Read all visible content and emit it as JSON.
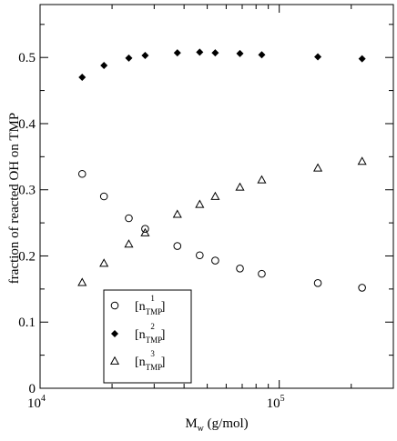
{
  "chart_data": {
    "type": "scatter",
    "title": "",
    "xlabel": {
      "main": "M",
      "sub": "w",
      "tail": " (g/mol)"
    },
    "ylabel": "fraction of reacted OH on TMP",
    "x_scale": "log",
    "xlim": [
      10000,
      300000
    ],
    "ylim": [
      0,
      0.58
    ],
    "grid": false,
    "legend_position": "bottom-left",
    "x_ticks": [
      {
        "value": 10000,
        "base": "10",
        "exp": "4"
      },
      {
        "value": 100000,
        "base": "10",
        "exp": "5"
      }
    ],
    "y_ticks": [
      {
        "value": 0,
        "label": "0"
      },
      {
        "value": 0.1,
        "label": "0.1"
      },
      {
        "value": 0.2,
        "label": "0.2"
      },
      {
        "value": 0.3,
        "label": "0.3"
      },
      {
        "value": 0.4,
        "label": "0.4"
      },
      {
        "value": 0.5,
        "label": "0.5"
      }
    ],
    "series": [
      {
        "name": {
          "open": "[n",
          "sub": "TMP",
          "sup": "1",
          "close": "]"
        },
        "marker": "circle-open",
        "x": [
          15000,
          18500,
          23500,
          27500,
          37500,
          46500,
          54000,
          68500,
          84500,
          145000,
          222000
        ],
        "y": [
          0.324,
          0.29,
          0.257,
          0.241,
          0.215,
          0.201,
          0.193,
          0.181,
          0.173,
          0.159,
          0.152
        ]
      },
      {
        "name": {
          "open": "[n",
          "sub": "TMP",
          "sup": "2",
          "close": "]"
        },
        "marker": "diamond-filled",
        "x": [
          15000,
          18500,
          23500,
          27500,
          37500,
          46500,
          54000,
          68500,
          84500,
          145000,
          222000
        ],
        "y": [
          0.47,
          0.488,
          0.499,
          0.503,
          0.507,
          0.508,
          0.507,
          0.506,
          0.504,
          0.501,
          0.498
        ]
      },
      {
        "name": {
          "open": "[n",
          "sub": "TMP",
          "sup": "3",
          "close": "]"
        },
        "marker": "triangle-open",
        "x": [
          15000,
          18500,
          23500,
          27500,
          37500,
          46500,
          54000,
          68500,
          84500,
          145000,
          222000
        ],
        "y": [
          0.16,
          0.189,
          0.218,
          0.235,
          0.263,
          0.278,
          0.29,
          0.304,
          0.315,
          0.333,
          0.343
        ]
      }
    ]
  }
}
